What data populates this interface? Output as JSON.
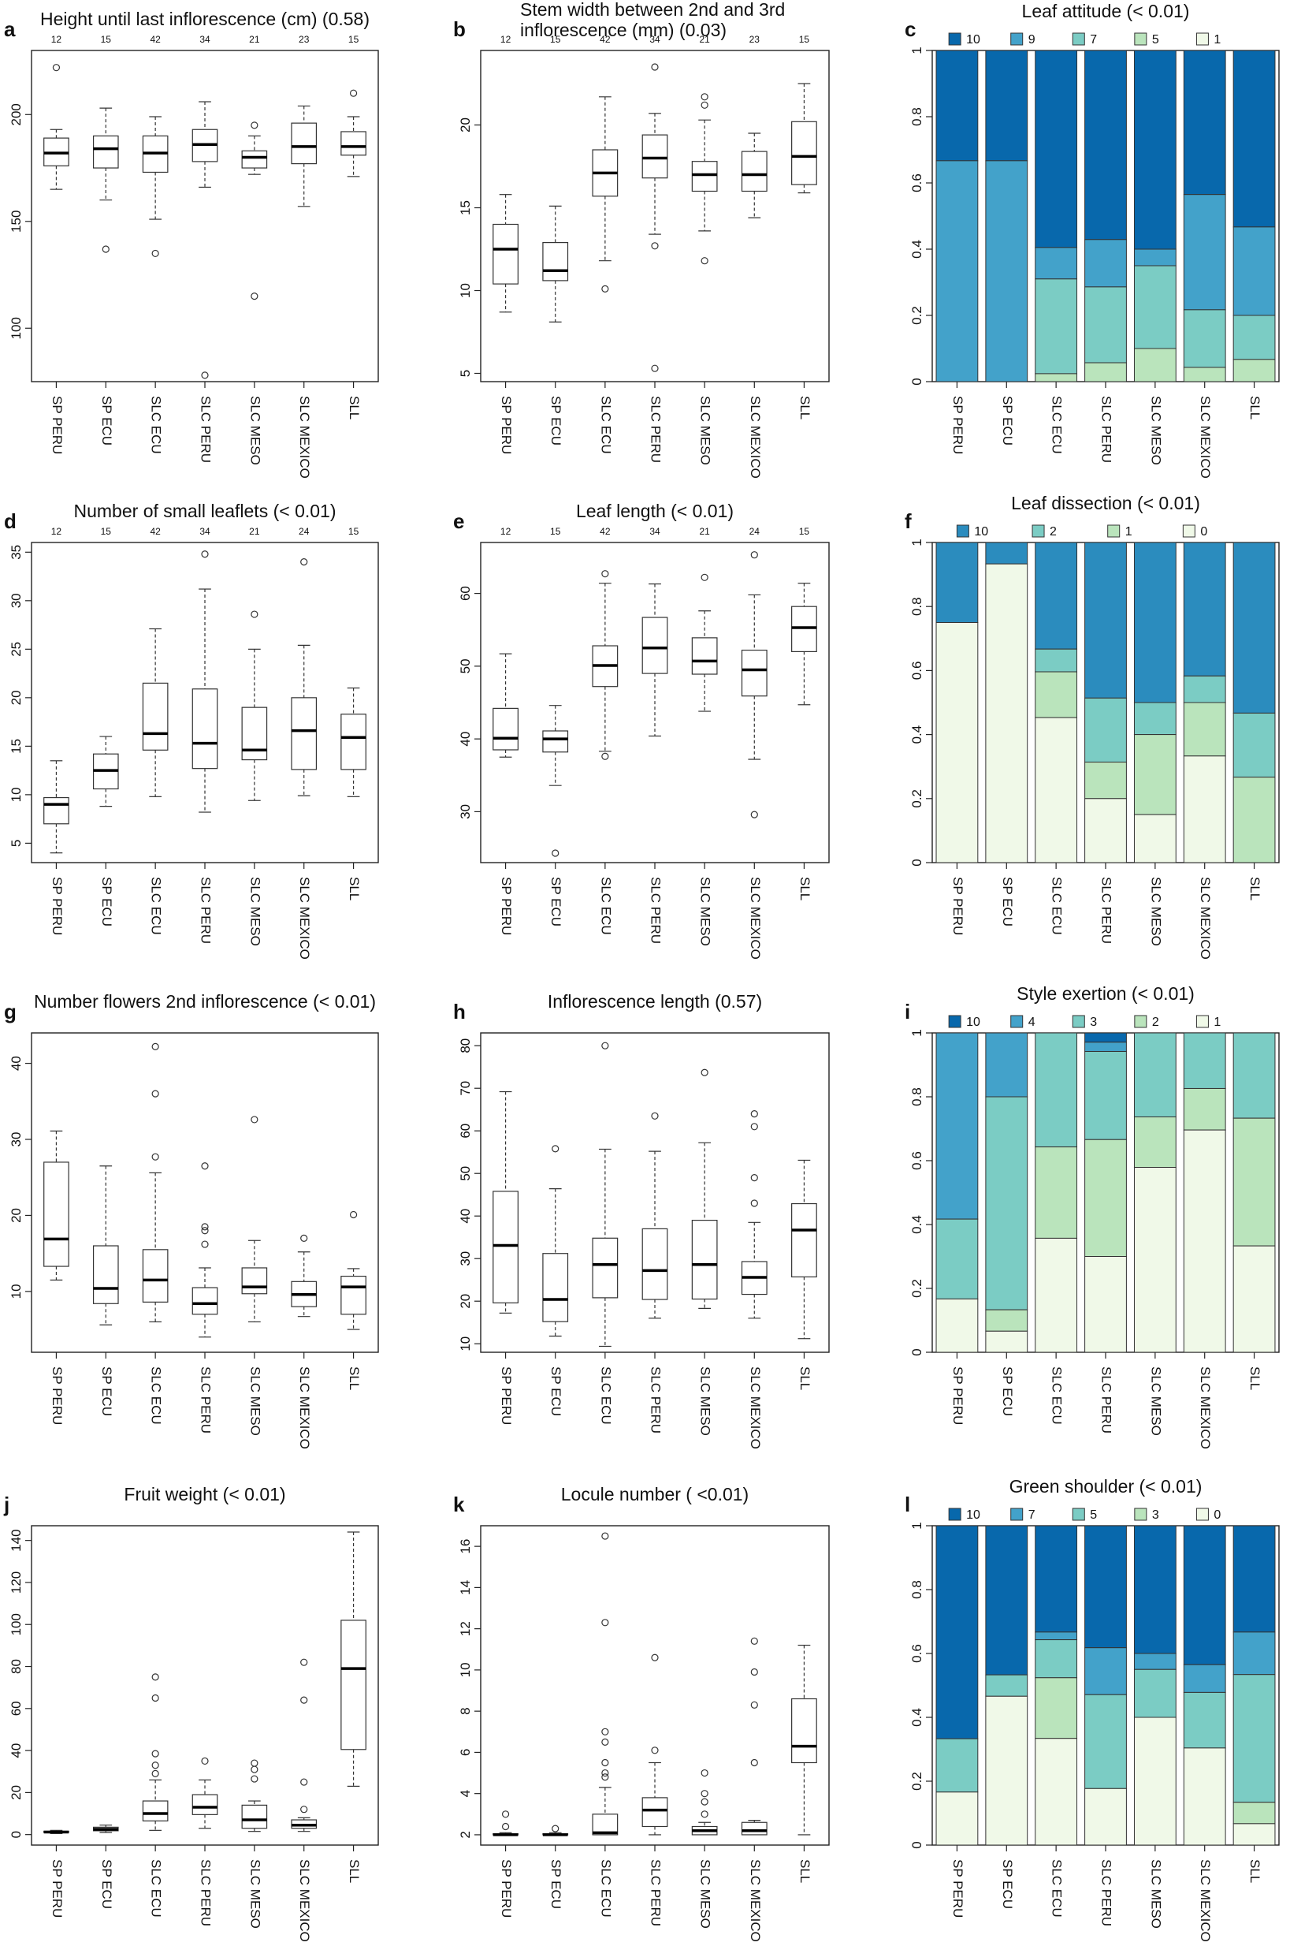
{
  "figure": {
    "categories": [
      "SP  PERU",
      "SP  ECU",
      "SLC ECU",
      "SLC  PERU",
      "SLC  MESO",
      "SLC MEXICO",
      "SLL"
    ]
  },
  "chart_data": [
    {
      "id": "a",
      "letter": "a",
      "type": "boxplot",
      "title": "Height until last inflorescence (cm) (0.58)",
      "n": [
        "12",
        "15",
        "42",
        "34",
        "21",
        "23",
        "15"
      ],
      "ylim": [
        75,
        230
      ],
      "yticks": [
        100,
        150,
        200
      ],
      "boxes": [
        {
          "lw": 165,
          "q1": 176,
          "med": 182,
          "q3": 189,
          "uw": 193,
          "out": [
            222
          ]
        },
        {
          "lw": 160,
          "q1": 175,
          "med": 184,
          "q3": 190,
          "uw": 203,
          "out": [
            137
          ]
        },
        {
          "lw": 151,
          "q1": 173,
          "med": 182,
          "q3": 190,
          "uw": 199,
          "out": [
            135
          ]
        },
        {
          "lw": 166,
          "q1": 178,
          "med": 186,
          "q3": 193,
          "uw": 206,
          "out": [
            78
          ]
        },
        {
          "lw": 172,
          "q1": 175,
          "med": 180,
          "q3": 183,
          "uw": 190,
          "out": [
            195,
            115
          ]
        },
        {
          "lw": 157,
          "q1": 177,
          "med": 185,
          "q3": 196,
          "uw": 204,
          "out": []
        },
        {
          "lw": 171,
          "q1": 181,
          "med": 185,
          "q3": 192,
          "uw": 199,
          "out": [
            210
          ]
        }
      ]
    },
    {
      "id": "b",
      "letter": "b",
      "type": "boxplot",
      "title": "Stem width between 2nd and 3rd inflorescence (mm) (0.03)",
      "title_lines": [
        "Stem width between 2nd and 3rd",
        "inflorescence (mm) (0.03)"
      ],
      "n": [
        "12",
        "15",
        "42",
        "34",
        "21",
        "23",
        "15"
      ],
      "ylim": [
        4.5,
        24.5
      ],
      "yticks": [
        5,
        10,
        15,
        20
      ],
      "boxes": [
        {
          "lw": 8.7,
          "q1": 10.4,
          "med": 12.5,
          "q3": 14.0,
          "uw": 15.8,
          "out": []
        },
        {
          "lw": 8.1,
          "q1": 10.6,
          "med": 11.2,
          "q3": 12.9,
          "uw": 15.1,
          "out": []
        },
        {
          "lw": 11.8,
          "q1": 15.7,
          "med": 17.1,
          "q3": 18.5,
          "uw": 21.7,
          "out": [
            10.1
          ]
        },
        {
          "lw": 13.4,
          "q1": 16.8,
          "med": 18.0,
          "q3": 19.4,
          "uw": 20.7,
          "out": [
            23.5,
            12.7,
            5.3
          ]
        },
        {
          "lw": 13.6,
          "q1": 16.0,
          "med": 17.0,
          "q3": 17.8,
          "uw": 20.3,
          "out": [
            21.7,
            21.2,
            11.8
          ]
        },
        {
          "lw": 14.4,
          "q1": 16.0,
          "med": 17.0,
          "q3": 18.4,
          "uw": 19.5,
          "out": []
        },
        {
          "lw": 15.9,
          "q1": 16.4,
          "med": 18.1,
          "q3": 20.2,
          "uw": 22.5,
          "out": []
        }
      ]
    },
    {
      "id": "c",
      "letter": "c",
      "type": "stacked_bar",
      "title": "Leaf attitude (< 0.01)",
      "legend": [
        {
          "label": "10",
          "color": "#0868ac"
        },
        {
          "label": "9",
          "color": "#43a2ca"
        },
        {
          "label": "7",
          "color": "#7bccc4"
        },
        {
          "label": "5",
          "color": "#bae4bc"
        },
        {
          "label": "1",
          "color": "#f0f9e8"
        }
      ],
      "ylim": [
        0,
        1
      ],
      "yticks": [
        "0",
        "0.2",
        "0.4",
        "0.6",
        "0.8",
        "1"
      ],
      "proportions": [
        [
          0.333,
          0.667,
          0,
          0,
          0
        ],
        [
          0.333,
          0.667,
          0,
          0,
          0
        ],
        [
          0.595,
          0.095,
          0.286,
          0.024,
          0
        ],
        [
          0.571,
          0.143,
          0.229,
          0.057,
          0
        ],
        [
          0.6,
          0.05,
          0.25,
          0.1,
          0
        ],
        [
          0.435,
          0.348,
          0.174,
          0.043,
          0
        ],
        [
          0.533,
          0.267,
          0.133,
          0.067,
          0
        ]
      ]
    },
    {
      "id": "d",
      "letter": "d",
      "type": "boxplot",
      "title": "Number of small leaflets (< 0.01)",
      "n": [
        "12",
        "15",
        "42",
        "34",
        "21",
        "24",
        "15"
      ],
      "ylim": [
        3,
        36
      ],
      "yticks": [
        5,
        10,
        15,
        20,
        25,
        30,
        35
      ],
      "boxes": [
        {
          "lw": 4.0,
          "q1": 7.0,
          "med": 9.0,
          "q3": 9.7,
          "uw": 13.5,
          "out": []
        },
        {
          "lw": 8.8,
          "q1": 10.6,
          "med": 12.5,
          "q3": 14.2,
          "uw": 16.0,
          "out": []
        },
        {
          "lw": 9.8,
          "q1": 14.6,
          "med": 16.3,
          "q3": 21.5,
          "uw": 27.1,
          "out": []
        },
        {
          "lw": 8.2,
          "q1": 12.7,
          "med": 15.3,
          "q3": 20.9,
          "uw": 31.2,
          "out": [
            34.8
          ]
        },
        {
          "lw": 9.4,
          "q1": 13.6,
          "med": 14.6,
          "q3": 19.0,
          "uw": 25.0,
          "out": [
            28.6
          ]
        },
        {
          "lw": 9.9,
          "q1": 12.6,
          "med": 16.6,
          "q3": 20.0,
          "uw": 25.4,
          "out": [
            34.0
          ]
        },
        {
          "lw": 9.8,
          "q1": 12.6,
          "med": 15.9,
          "q3": 18.3,
          "uw": 21.0,
          "out": []
        }
      ]
    },
    {
      "id": "e",
      "letter": "e",
      "type": "boxplot",
      "title": "Leaf length (< 0.01)",
      "n": [
        "12",
        "15",
        "42",
        "34",
        "21",
        "24",
        "15"
      ],
      "ylim": [
        23,
        67
      ],
      "yticks": [
        30,
        40,
        50,
        60
      ],
      "boxes": [
        {
          "lw": 37.5,
          "q1": 38.5,
          "med": 40.1,
          "q3": 44.2,
          "uw": 51.7,
          "out": []
        },
        {
          "lw": 33.6,
          "q1": 38.2,
          "med": 40.0,
          "q3": 41.1,
          "uw": 44.6,
          "out": [
            24.3
          ]
        },
        {
          "lw": 38.3,
          "q1": 47.2,
          "med": 50.1,
          "q3": 52.8,
          "uw": 61.4,
          "out": [
            62.7,
            37.6
          ]
        },
        {
          "lw": 40.4,
          "q1": 49.0,
          "med": 52.5,
          "q3": 56.7,
          "uw": 61.3,
          "out": []
        },
        {
          "lw": 43.8,
          "q1": 48.9,
          "med": 50.7,
          "q3": 53.9,
          "uw": 57.6,
          "out": [
            62.2
          ]
        },
        {
          "lw": 37.2,
          "q1": 45.9,
          "med": 49.5,
          "q3": 52.2,
          "uw": 59.8,
          "out": [
            65.3,
            29.6
          ]
        },
        {
          "lw": 44.7,
          "q1": 52.0,
          "med": 55.3,
          "q3": 58.2,
          "uw": 61.4,
          "out": []
        }
      ]
    },
    {
      "id": "f",
      "letter": "f",
      "type": "stacked_bar",
      "title": "Leaf dissection (< 0.01)",
      "legend": [
        {
          "label": "10",
          "color": "#2b8cbe"
        },
        {
          "label": "2",
          "color": "#7bccc4"
        },
        {
          "label": "1",
          "color": "#bae4bc"
        },
        {
          "label": "0",
          "color": "#f0f9e8"
        }
      ],
      "ylim": [
        0,
        1
      ],
      "yticks": [
        "0",
        "0.2",
        "0.4",
        "0.6",
        "0.8",
        "1"
      ],
      "proportions": [
        [
          0.25,
          0,
          0,
          0.75
        ],
        [
          0.067,
          0,
          0,
          0.933
        ],
        [
          0.333,
          0.071,
          0.143,
          0.453
        ],
        [
          0.486,
          0.2,
          0.114,
          0.2
        ],
        [
          0.5,
          0.1,
          0.25,
          0.15
        ],
        [
          0.417,
          0.083,
          0.167,
          0.333
        ],
        [
          0.533,
          0.2,
          0.267,
          0
        ]
      ]
    },
    {
      "id": "g",
      "letter": "g",
      "type": "boxplot",
      "title": "Number flowers 2nd inflorescence (< 0.01)",
      "n": [],
      "ylim": [
        2,
        44
      ],
      "yticks": [
        10,
        20,
        30,
        40
      ],
      "boxes": [
        {
          "lw": 11.5,
          "q1": 13.3,
          "med": 16.9,
          "q3": 27.0,
          "uw": 31.1,
          "out": []
        },
        {
          "lw": 5.6,
          "q1": 8.4,
          "med": 10.4,
          "q3": 16.0,
          "uw": 26.5,
          "out": []
        },
        {
          "lw": 6.0,
          "q1": 8.6,
          "med": 11.5,
          "q3": 15.5,
          "uw": 25.6,
          "out": [
            42.2,
            36.0,
            27.7
          ]
        },
        {
          "lw": 4.0,
          "q1": 7.0,
          "med": 8.4,
          "q3": 10.5,
          "uw": 13.1,
          "out": [
            26.5,
            18.5,
            18.0,
            16.2
          ]
        },
        {
          "lw": 6.0,
          "q1": 9.7,
          "med": 10.6,
          "q3": 13.1,
          "uw": 16.7,
          "out": [
            32.6
          ]
        },
        {
          "lw": 6.7,
          "q1": 8.0,
          "med": 9.6,
          "q3": 11.3,
          "uw": 15.2,
          "out": [
            17.0
          ]
        },
        {
          "lw": 5.0,
          "q1": 7.0,
          "med": 10.6,
          "q3": 12.0,
          "uw": 13.0,
          "out": [
            20.1
          ]
        }
      ]
    },
    {
      "id": "h",
      "letter": "h",
      "type": "boxplot",
      "title": "Inflorescence length (0.57)",
      "n": [],
      "ylim": [
        8,
        83
      ],
      "yticks": [
        10,
        20,
        30,
        40,
        50,
        60,
        70,
        80
      ],
      "boxes": [
        {
          "lw": 17.2,
          "q1": 19.6,
          "med": 33.1,
          "q3": 45.8,
          "uw": 69.2,
          "out": []
        },
        {
          "lw": 11.8,
          "q1": 15.2,
          "med": 20.4,
          "q3": 31.2,
          "uw": 46.4,
          "out": [
            55.8
          ]
        },
        {
          "lw": 9.4,
          "q1": 20.8,
          "med": 28.6,
          "q3": 34.8,
          "uw": 55.7,
          "out": [
            80.0
          ]
        },
        {
          "lw": 16.0,
          "q1": 20.4,
          "med": 27.2,
          "q3": 37.0,
          "uw": 55.2,
          "out": [
            63.5
          ]
        },
        {
          "lw": 18.3,
          "q1": 20.5,
          "med": 28.6,
          "q3": 39.0,
          "uw": 57.2,
          "out": [
            73.7
          ]
        },
        {
          "lw": 16.0,
          "q1": 21.6,
          "med": 25.6,
          "q3": 29.3,
          "uw": 38.5,
          "out": [
            64.0,
            61.0,
            49.0,
            43.0
          ]
        },
        {
          "lw": 11.2,
          "q1": 25.7,
          "med": 36.7,
          "q3": 42.9,
          "uw": 53.1,
          "out": []
        }
      ]
    },
    {
      "id": "i",
      "letter": "i",
      "type": "stacked_bar",
      "title": "Style exertion (< 0.01)",
      "legend": [
        {
          "label": "10",
          "color": "#0868ac"
        },
        {
          "label": "4",
          "color": "#43a2ca"
        },
        {
          "label": "3",
          "color": "#7bccc4"
        },
        {
          "label": "2",
          "color": "#bae4bc"
        },
        {
          "label": "1",
          "color": "#f0f9e8"
        }
      ],
      "ylim": [
        0,
        1
      ],
      "yticks": [
        "0",
        "0.2",
        "0.4",
        "0.6",
        "0.8",
        "1"
      ],
      "proportions": [
        [
          0,
          0.583,
          0.25,
          0,
          0.167
        ],
        [
          0,
          0.2,
          0.667,
          0.067,
          0.066
        ],
        [
          0,
          0,
          0.357,
          0.286,
          0.357
        ],
        [
          0.029,
          0.029,
          0.276,
          0.366,
          0.3
        ],
        [
          0,
          0,
          0.263,
          0.158,
          0.579
        ],
        [
          0,
          0,
          0.174,
          0.13,
          0.696
        ],
        [
          0,
          0,
          0.267,
          0.4,
          0.333
        ]
      ]
    },
    {
      "id": "j",
      "letter": "j",
      "type": "boxplot",
      "title": "Fruit weight (< 0.01)",
      "n": [],
      "ylim": [
        -5,
        147
      ],
      "yticks": [
        0,
        20,
        40,
        60,
        80,
        100,
        120,
        140
      ],
      "boxes": [
        {
          "lw": 0.5,
          "q1": 1.0,
          "med": 1.2,
          "q3": 1.6,
          "uw": 2.0,
          "out": []
        },
        {
          "lw": 1.0,
          "q1": 1.8,
          "med": 2.5,
          "q3": 3.5,
          "uw": 4.5,
          "out": []
        },
        {
          "lw": 2.0,
          "q1": 6.5,
          "med": 10.0,
          "q3": 16.0,
          "uw": 26.0,
          "out": [
            75.0,
            65.0,
            38.5,
            33.0,
            29.0
          ]
        },
        {
          "lw": 3.0,
          "q1": 9.5,
          "med": 13.0,
          "q3": 19.0,
          "uw": 26.0,
          "out": [
            35.0
          ]
        },
        {
          "lw": 1.5,
          "q1": 3.0,
          "med": 7.0,
          "q3": 14.0,
          "uw": 16.0,
          "out": [
            34.0,
            31.0,
            26.5
          ]
        },
        {
          "lw": 1.5,
          "q1": 3.0,
          "med": 4.5,
          "q3": 7.0,
          "uw": 8.0,
          "out": [
            82.0,
            64.0,
            25.0,
            12.0
          ]
        },
        {
          "lw": 23.0,
          "q1": 40.5,
          "med": 79.0,
          "q3": 102.0,
          "uw": 144.0,
          "out": []
        }
      ]
    },
    {
      "id": "k",
      "letter": "k",
      "type": "boxplot",
      "title": "Locule number ( <0.01)",
      "n": [],
      "ylim": [
        1.5,
        17
      ],
      "yticks": [
        2,
        4,
        6,
        8,
        10,
        12,
        14,
        16
      ],
      "boxes": [
        {
          "lw": 2.0,
          "q1": 2.0,
          "med": 2.0,
          "q3": 2.05,
          "uw": 2.1,
          "out": [
            3.0,
            2.4
          ]
        },
        {
          "lw": 2.0,
          "q1": 2.0,
          "med": 2.0,
          "q3": 2.05,
          "uw": 2.1,
          "out": [
            2.3
          ]
        },
        {
          "lw": 2.0,
          "q1": 2.0,
          "med": 2.1,
          "q3": 3.0,
          "uw": 4.3,
          "out": [
            16.5,
            12.3,
            7.0,
            6.5,
            5.5,
            5.0,
            4.8
          ]
        },
        {
          "lw": 2.0,
          "q1": 2.4,
          "med": 3.2,
          "q3": 3.8,
          "uw": 5.5,
          "out": [
            10.6,
            6.1
          ]
        },
        {
          "lw": 2.0,
          "q1": 2.0,
          "med": 2.2,
          "q3": 2.4,
          "uw": 2.6,
          "out": [
            5.0,
            4.0,
            3.6,
            3.0
          ]
        },
        {
          "lw": 2.0,
          "q1": 2.0,
          "med": 2.2,
          "q3": 2.6,
          "uw": 2.7,
          "out": [
            11.4,
            9.9,
            8.3,
            5.5
          ]
        },
        {
          "lw": 2.0,
          "q1": 5.5,
          "med": 6.3,
          "q3": 8.6,
          "uw": 11.2,
          "out": []
        }
      ]
    },
    {
      "id": "l",
      "letter": "l",
      "type": "stacked_bar",
      "title": "Green shoulder (< 0.01)",
      "legend": [
        {
          "label": "10",
          "color": "#0868ac"
        },
        {
          "label": "7",
          "color": "#43a2ca"
        },
        {
          "label": "5",
          "color": "#7bccc4"
        },
        {
          "label": "3",
          "color": "#bae4bc"
        },
        {
          "label": "0",
          "color": "#f0f9e8"
        }
      ],
      "ylim": [
        0,
        1
      ],
      "yticks": [
        "0",
        "0.2",
        "0.4",
        "0.6",
        "0.8",
        "1"
      ],
      "proportions": [
        [
          0.667,
          0,
          0.167,
          0,
          0.166
        ],
        [
          0.467,
          0,
          0.067,
          0,
          0.466
        ],
        [
          0.333,
          0.024,
          0.119,
          0.19,
          0.334
        ],
        [
          0.382,
          0.147,
          0.294,
          0,
          0.177
        ],
        [
          0.4,
          0.05,
          0.15,
          0,
          0.4
        ],
        [
          0.435,
          0.087,
          0.174,
          0,
          0.304
        ],
        [
          0.333,
          0.133,
          0.4,
          0.067,
          0.067
        ]
      ]
    }
  ]
}
